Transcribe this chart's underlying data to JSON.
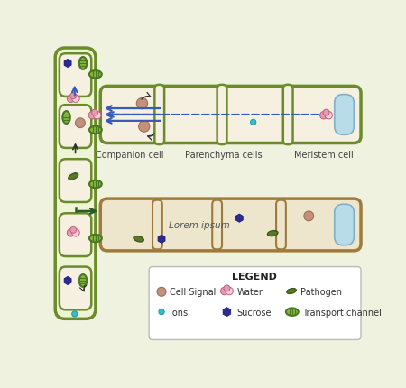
{
  "bg_color": "#f0f2e0",
  "col_bg": "#eef5d5",
  "col_edge": "#6b8c2a",
  "cell_fill": "#f5f0e0",
  "cell_fill2": "#ede5cc",
  "cell_edge": "#6b8c2a",
  "cell_edge2": "#9e7b3a",
  "signal_color": "#c4907a",
  "water_outer": "#e89ab0",
  "water_inner": "#f8d0dc",
  "ion_color": "#3abccc",
  "sucrose_color": "#2c2c90",
  "pathogen_color": "#5a7828",
  "nucleus_color": "#b8dde8",
  "arrow_blue": "#3a5ab8",
  "arrow_dark": "#303030",
  "arrow_green": "#2a5a28",
  "transport_fill": "#8ab840",
  "transport_edge": "#4a7820",
  "transport_stripe": "#c8e080",
  "legend_title": "LEGEND",
  "label1": "Companion cell",
  "label2": "Parenchyma cells",
  "label3": "Meristem cell",
  "lorem": "Lorem ipsum"
}
